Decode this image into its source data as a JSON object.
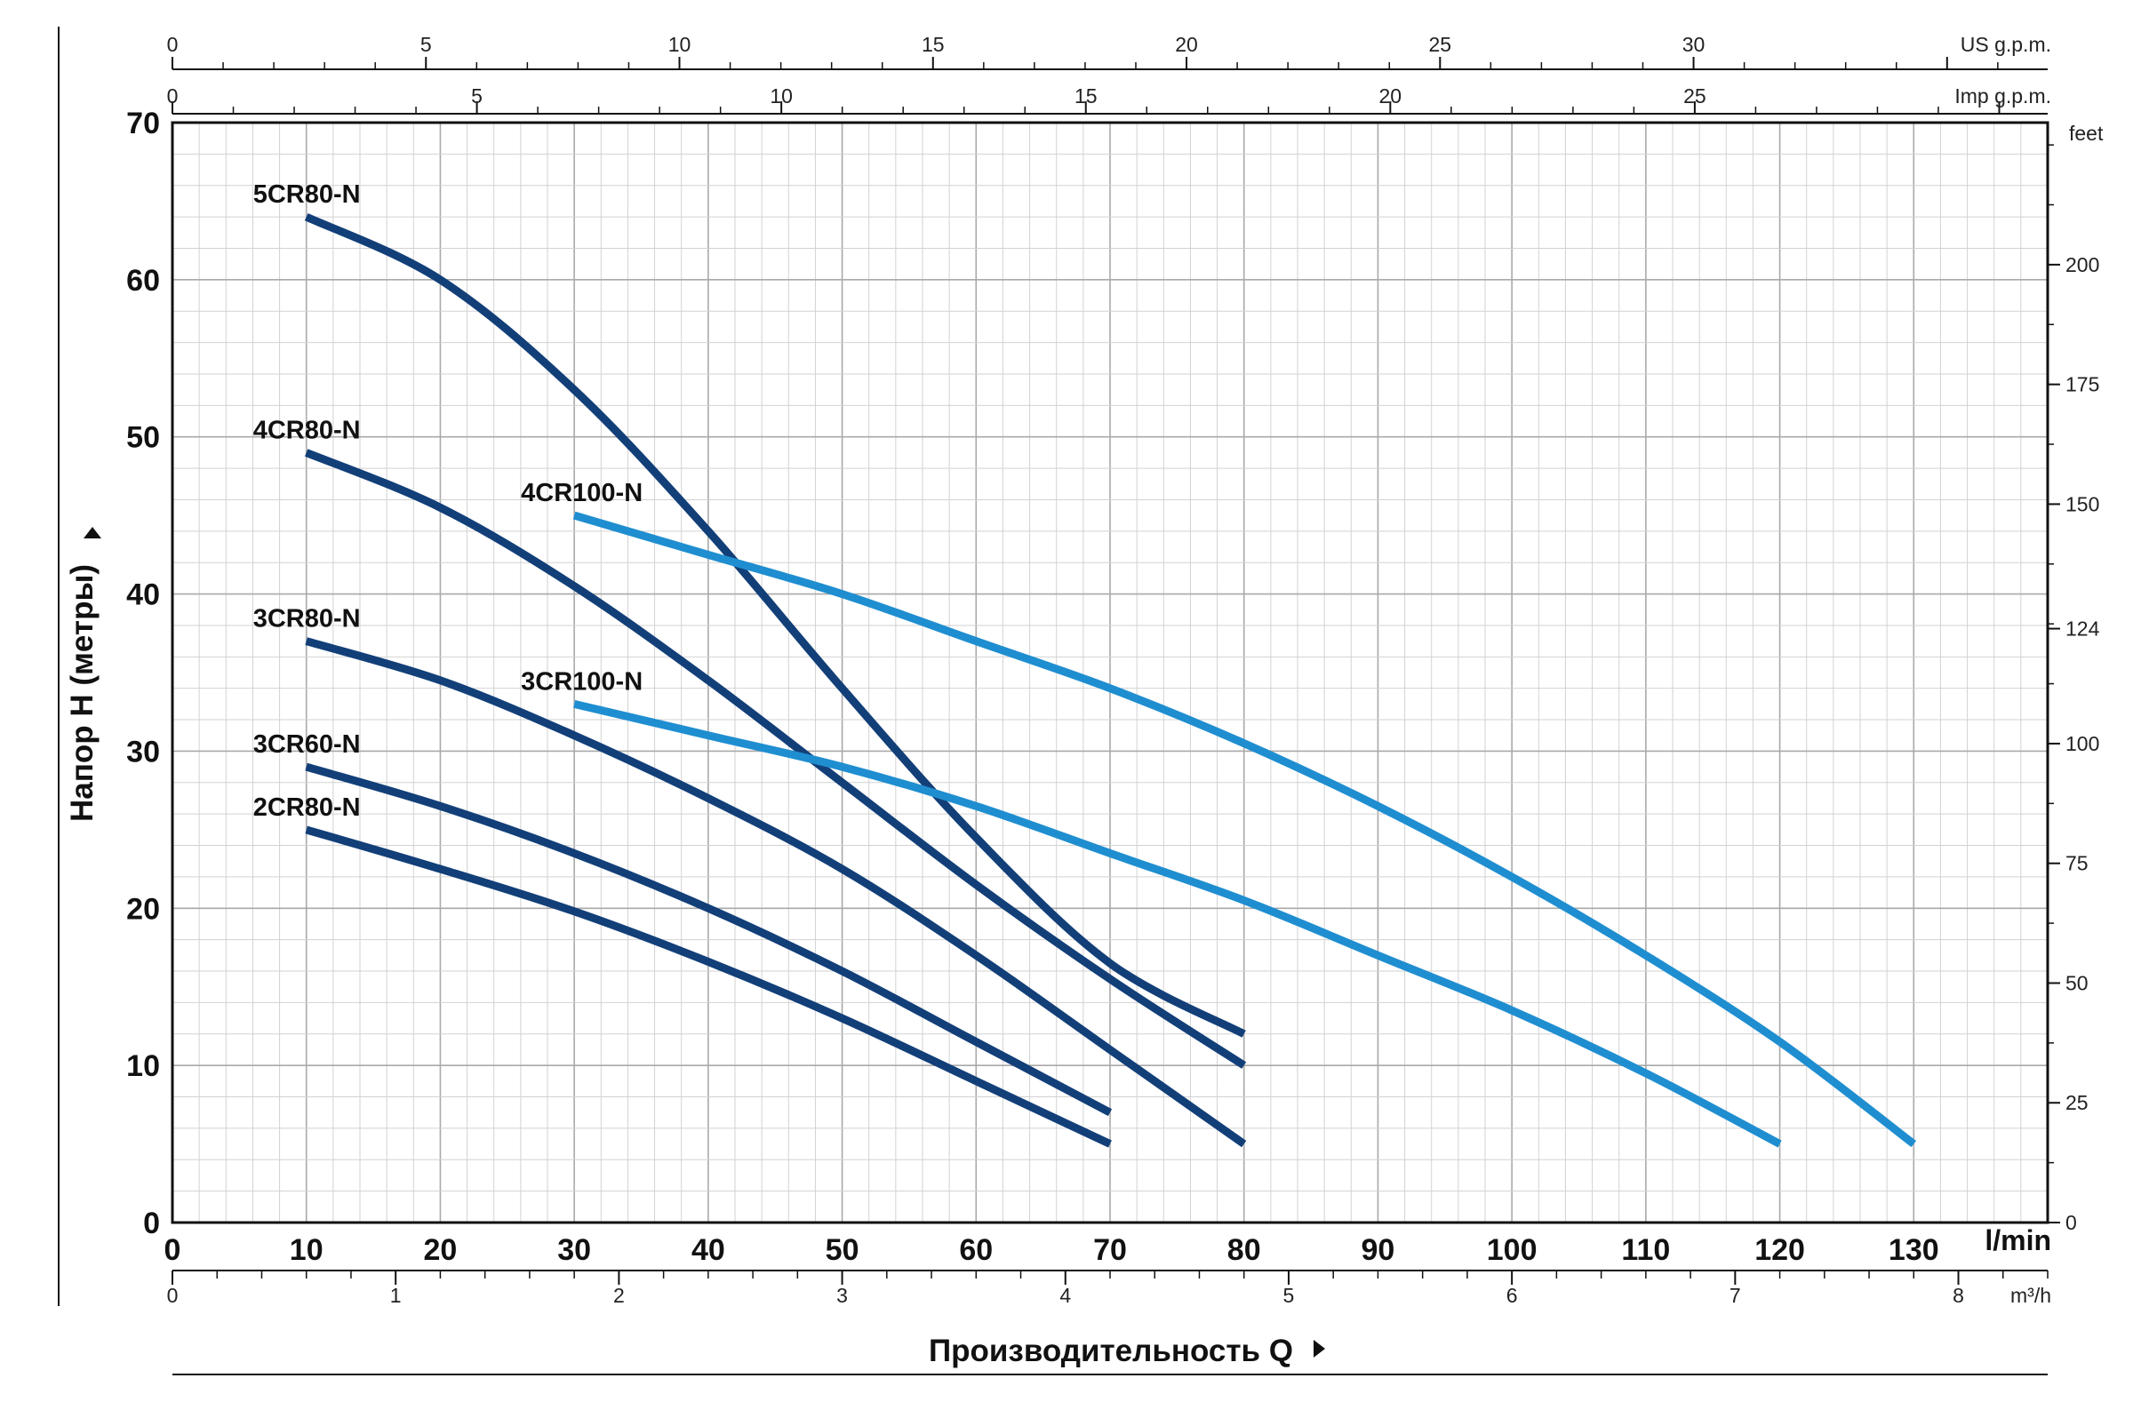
{
  "chart_data": {
    "type": "line",
    "x": {
      "label": "l/min",
      "range": [
        0,
        140
      ],
      "ticks": [
        0,
        10,
        20,
        30,
        40,
        50,
        60,
        70,
        80,
        90,
        100,
        110,
        120,
        130
      ]
    },
    "y": {
      "label": "Напор H (метры)",
      "range": [
        0,
        70
      ],
      "ticks": [
        0,
        10,
        20,
        30,
        40,
        50,
        60,
        70
      ]
    },
    "secondary_axes": {
      "us_gpm": {
        "label": "US g.p.m.",
        "ticks": [
          0,
          5,
          10,
          15,
          20,
          25,
          30
        ]
      },
      "imp_gpm": {
        "label": "Imp g.p.m.",
        "ticks": [
          0,
          5,
          10,
          15,
          20,
          25
        ]
      },
      "feet": {
        "label": "feet",
        "ticks": [
          0,
          25,
          50,
          75,
          100,
          124,
          150,
          175,
          200
        ]
      },
      "m3h": {
        "label": "m³/h",
        "ticks": [
          0,
          1,
          2,
          3,
          4,
          5,
          6,
          7,
          8
        ]
      }
    },
    "xlabel": "Производительность Q",
    "grid": true,
    "series": [
      {
        "name": "5CR80-N",
        "color": "#123f78",
        "points": [
          [
            10,
            64
          ],
          [
            20,
            60
          ],
          [
            30,
            53
          ],
          [
            40,
            44
          ],
          [
            50,
            34
          ],
          [
            60,
            24.5
          ],
          [
            70,
            16.5
          ],
          [
            80,
            12
          ]
        ]
      },
      {
        "name": "4CR80-N",
        "color": "#123f78",
        "points": [
          [
            10,
            49
          ],
          [
            20,
            45.5
          ],
          [
            30,
            40.5
          ],
          [
            40,
            34.5
          ],
          [
            50,
            28
          ],
          [
            60,
            21.5
          ],
          [
            70,
            15.5
          ],
          [
            80,
            10
          ]
        ]
      },
      {
        "name": "3CR80-N",
        "color": "#123f78",
        "points": [
          [
            10,
            37
          ],
          [
            20,
            34.5
          ],
          [
            30,
            31
          ],
          [
            40,
            27
          ],
          [
            50,
            22.5
          ],
          [
            60,
            17
          ],
          [
            70,
            11
          ],
          [
            80,
            5
          ]
        ]
      },
      {
        "name": "3CR60-N",
        "color": "#123f78",
        "points": [
          [
            10,
            29
          ],
          [
            20,
            26.5
          ],
          [
            30,
            23.5
          ],
          [
            40,
            20
          ],
          [
            50,
            16
          ],
          [
            60,
            11.5
          ],
          [
            70,
            7
          ]
        ]
      },
      {
        "name": "2CR80-N",
        "color": "#123f78",
        "points": [
          [
            10,
            25
          ],
          [
            20,
            22.5
          ],
          [
            30,
            19.8
          ],
          [
            40,
            16.6
          ],
          [
            50,
            13
          ],
          [
            60,
            9
          ],
          [
            70,
            5
          ]
        ]
      },
      {
        "name": "4CR100-N",
        "color": "#1f8ed0",
        "points": [
          [
            30,
            45
          ],
          [
            40,
            42.5
          ],
          [
            50,
            40
          ],
          [
            60,
            37
          ],
          [
            70,
            34
          ],
          [
            80,
            30.5
          ],
          [
            90,
            26.5
          ],
          [
            100,
            22
          ],
          [
            110,
            17
          ],
          [
            120,
            11.5
          ],
          [
            130,
            5
          ]
        ]
      },
      {
        "name": "3CR100-N",
        "color": "#1f8ed0",
        "points": [
          [
            30,
            33
          ],
          [
            40,
            31
          ],
          [
            50,
            29
          ],
          [
            60,
            26.5
          ],
          [
            70,
            23.5
          ],
          [
            80,
            20.5
          ],
          [
            90,
            17
          ],
          [
            100,
            13.5
          ],
          [
            110,
            9.5
          ],
          [
            120,
            5
          ]
        ]
      }
    ]
  }
}
